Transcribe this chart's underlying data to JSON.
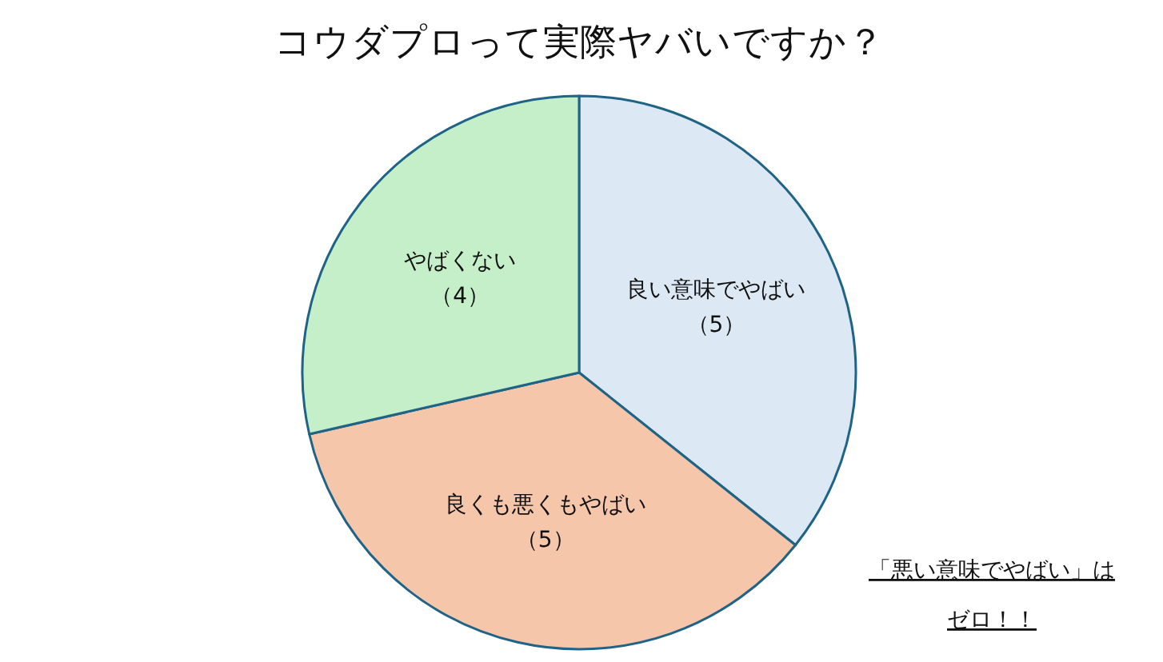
{
  "chart_data": {
    "type": "pie",
    "title": "コウダプロって実際ヤバいですか？",
    "categories": [
      "良い意味でやばい",
      "良くも悪くもやばい",
      "やばくない"
    ],
    "values": [
      5,
      5,
      4
    ],
    "value_labels": [
      "（5）",
      "（5）",
      "（4）"
    ],
    "colors": [
      "#dce9f5",
      "#f6c6ab",
      "#c5efc9"
    ],
    "annotations": [
      "「悪い意味でやばい」は",
      "ゼロ！！"
    ]
  }
}
